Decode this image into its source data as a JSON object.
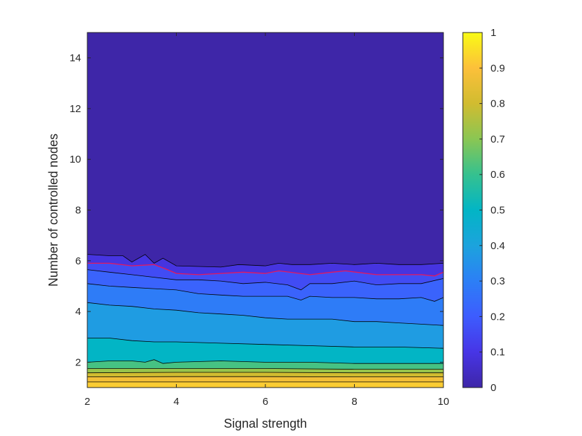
{
  "chart_data": {
    "type": "contour",
    "title": "",
    "xlabel": "Signal strength",
    "ylabel": "Number of controlled nodes",
    "xlim": [
      2,
      10
    ],
    "ylim": [
      1,
      15
    ],
    "xticks": [
      2,
      4,
      6,
      8,
      10
    ],
    "yticks": [
      2,
      4,
      6,
      8,
      10,
      12,
      14
    ],
    "colorbar": {
      "range": [
        0,
        1
      ],
      "ticks": [
        0,
        0.1,
        0.2,
        0.3,
        0.4,
        0.5,
        0.6,
        0.7,
        0.8,
        0.9,
        1
      ],
      "tick_labels": [
        "0",
        "0.1",
        "0.2",
        "0.3",
        "0.4",
        "0.5",
        "0.6",
        "0.7",
        "0.8",
        "0.9",
        "1"
      ],
      "colormap": "parula"
    },
    "highlight_contour_color": "#e8185a",
    "contour_line_color": "#000000",
    "contours": [
      {
        "level": 0.05,
        "x": [
          2,
          2.5,
          2.8,
          3,
          3.3,
          3.5,
          3.7,
          4,
          5,
          5.4,
          6,
          6.3,
          6.6,
          7,
          7.5,
          8,
          8.5,
          9,
          9.5,
          10
        ],
        "y": [
          6.25,
          6.2,
          6.2,
          5.95,
          6.25,
          5.9,
          6.1,
          5.8,
          5.75,
          5.85,
          5.8,
          5.9,
          5.85,
          5.85,
          5.9,
          5.85,
          5.9,
          5.85,
          5.85,
          5.9
        ]
      },
      {
        "level": 0.1,
        "highlight": true,
        "x": [
          2,
          2.5,
          3,
          3.5,
          3.8,
          4,
          4.5,
          5,
          5.5,
          6,
          6.3,
          7,
          7.5,
          7.8,
          8.5,
          9,
          9.5,
          9.8,
          10
        ],
        "y": [
          5.9,
          5.9,
          5.8,
          5.85,
          5.65,
          5.5,
          5.45,
          5.5,
          5.55,
          5.5,
          5.6,
          5.45,
          5.55,
          5.6,
          5.45,
          5.45,
          5.45,
          5.4,
          5.55
        ]
      },
      {
        "level": 0.15,
        "x": [
          2,
          2.5,
          3,
          3.5,
          4,
          4.5,
          5,
          5.5,
          6,
          6.5,
          6.8,
          7,
          7.5,
          8,
          8.5,
          9,
          9.5,
          10
        ],
        "y": [
          5.65,
          5.55,
          5.45,
          5.35,
          5.25,
          5.25,
          5.2,
          5.1,
          5.15,
          5.05,
          4.85,
          5.1,
          5.1,
          5.2,
          5.05,
          5.1,
          5.1,
          5.3
        ]
      },
      {
        "level": 0.2,
        "x": [
          2,
          2.5,
          3,
          3.5,
          4,
          4.5,
          5,
          5.5,
          6,
          6.5,
          6.8,
          7,
          7.5,
          8,
          8.5,
          9,
          9.5,
          9.8,
          10
        ],
        "y": [
          5.1,
          5.0,
          4.95,
          4.9,
          4.85,
          4.7,
          4.65,
          4.6,
          4.6,
          4.6,
          4.45,
          4.6,
          4.55,
          4.55,
          4.5,
          4.5,
          4.55,
          4.4,
          4.55
        ]
      },
      {
        "level": 0.25,
        "x": [
          2,
          2.5,
          3,
          3.5,
          4,
          4.5,
          5,
          5.5,
          6,
          6.5,
          7,
          7.5,
          8,
          8.5,
          9,
          9.5,
          10
        ],
        "y": [
          4.35,
          4.25,
          4.2,
          4.1,
          4.05,
          3.95,
          3.9,
          3.85,
          3.75,
          3.7,
          3.7,
          3.7,
          3.6,
          3.6,
          3.55,
          3.5,
          3.45
        ]
      },
      {
        "level": 0.3,
        "x": [
          2,
          2.5,
          3,
          3.5,
          4,
          5,
          6,
          7,
          8,
          9,
          10
        ],
        "y": [
          2.95,
          2.95,
          2.85,
          2.8,
          2.8,
          2.75,
          2.7,
          2.65,
          2.6,
          2.6,
          2.55
        ]
      },
      {
        "level": 0.35,
        "x": [
          2,
          2.5,
          3,
          3.3,
          3.5,
          3.7,
          4,
          5,
          6,
          7,
          8,
          9,
          10
        ],
        "y": [
          2.0,
          2.05,
          2.05,
          2.0,
          2.1,
          1.95,
          2.0,
          2.05,
          2.0,
          2.0,
          1.95,
          1.95,
          1.95
        ]
      },
      {
        "level": 0.4,
        "x": [
          2,
          4,
          6,
          8,
          10
        ],
        "y": [
          1.75,
          1.75,
          1.75,
          1.72,
          1.72
        ]
      },
      {
        "level": 0.45,
        "x": [
          2,
          4,
          6,
          8,
          10
        ],
        "y": [
          1.58,
          1.6,
          1.6,
          1.58,
          1.58
        ]
      },
      {
        "level": 0.5,
        "x": [
          2,
          4,
          6,
          8,
          10
        ],
        "y": [
          1.42,
          1.43,
          1.43,
          1.42,
          1.42
        ]
      },
      {
        "level": 0.55,
        "x": [
          2,
          4,
          6,
          8,
          10
        ],
        "y": [
          1.22,
          1.22,
          1.22,
          1.22,
          1.22
        ]
      }
    ],
    "fill_values": [
      0.0,
      0.09,
      0.16,
      0.22,
      0.29,
      0.38,
      0.5,
      0.62,
      0.72,
      0.8,
      0.88,
      0.92
    ]
  }
}
